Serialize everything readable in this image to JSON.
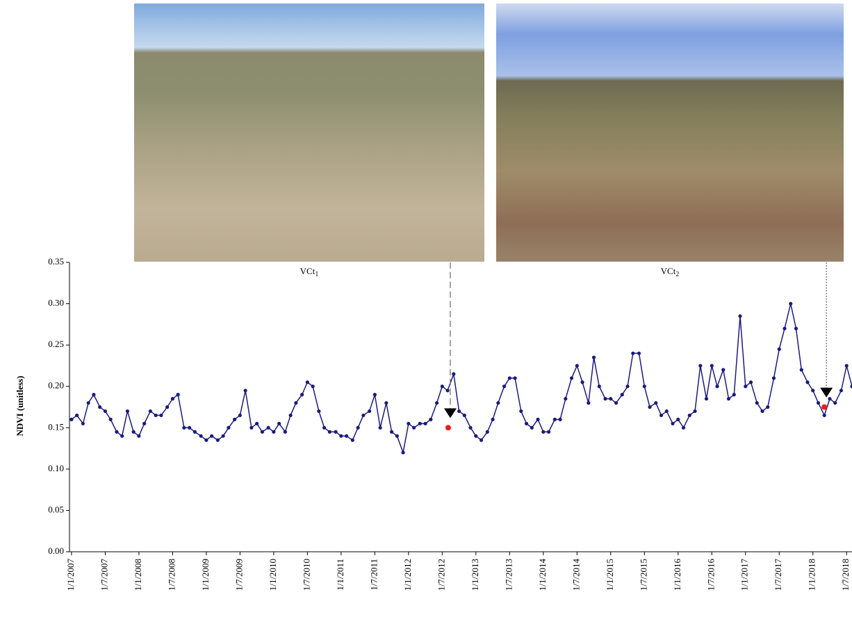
{
  "chart_data": {
    "type": "line",
    "y_label": "NDVI (unitless)",
    "xlim": [
      2006.97,
      2018.58
    ],
    "xticks": [
      {
        "value": 2007.0,
        "label": "1/1/2007"
      },
      {
        "value": 2007.5,
        "label": "1/7/2007"
      },
      {
        "value": 2008.0,
        "label": "1/1/2008"
      },
      {
        "value": 2008.5,
        "label": "1/7/2008"
      },
      {
        "value": 2009.0,
        "label": "1/1/2009"
      },
      {
        "value": 2009.5,
        "label": "1/7/2009"
      },
      {
        "value": 2010.0,
        "label": "1/1/2010"
      },
      {
        "value": 2010.5,
        "label": "1/7/2010"
      },
      {
        "value": 2011.0,
        "label": "1/1/2011"
      },
      {
        "value": 2011.5,
        "label": "1/7/2011"
      },
      {
        "value": 2012.0,
        "label": "1/1/2012"
      },
      {
        "value": 2012.5,
        "label": "1/7/2012"
      },
      {
        "value": 2013.0,
        "label": "1/1/2013"
      },
      {
        "value": 2013.5,
        "label": "1/7/2013"
      },
      {
        "value": 2014.0,
        "label": "1/1/2014"
      },
      {
        "value": 2014.5,
        "label": "1/7/2014"
      },
      {
        "value": 2015.0,
        "label": "1/1/2015"
      },
      {
        "value": 2015.5,
        "label": "1/7/2015"
      },
      {
        "value": 2016.0,
        "label": "1/1/2016"
      },
      {
        "value": 2016.5,
        "label": "1/7/2016"
      },
      {
        "value": 2017.0,
        "label": "1/1/2017"
      },
      {
        "value": 2017.5,
        "label": "1/7/2017"
      },
      {
        "value": 2018.0,
        "label": "1/1/2018"
      },
      {
        "value": 2018.5,
        "label": "1/7/2018"
      }
    ],
    "ylim": [
      0,
      0.35
    ],
    "yticks": [
      {
        "value": 0,
        "label": "0.00"
      },
      {
        "value": 0.05,
        "label": "0.05"
      },
      {
        "value": 0.1,
        "label": "0.10"
      },
      {
        "value": 0.15,
        "label": "0.15"
      },
      {
        "value": 0.2,
        "label": "0.20"
      },
      {
        "value": 0.25,
        "label": "0.25"
      },
      {
        "value": 0.3,
        "label": "0.30"
      },
      {
        "value": 0.35,
        "label": "0.35"
      }
    ],
    "series": [
      {
        "color": "#1a1a80",
        "x": [
          2007.0,
          2007.08,
          2007.17,
          2007.25,
          2007.33,
          2007.42,
          2007.5,
          2007.58,
          2007.67,
          2007.75,
          2007.83,
          2007.92,
          2008.0,
          2008.08,
          2008.17,
          2008.25,
          2008.33,
          2008.42,
          2008.5,
          2008.58,
          2008.67,
          2008.75,
          2008.83,
          2008.92,
          2009.0,
          2009.08,
          2009.17,
          2009.25,
          2009.33,
          2009.42,
          2009.5,
          2009.58,
          2009.67,
          2009.75,
          2009.83,
          2009.92,
          2010.0,
          2010.08,
          2010.17,
          2010.25,
          2010.33,
          2010.42,
          2010.5,
          2010.58,
          2010.67,
          2010.75,
          2010.83,
          2010.92,
          2011.0,
          2011.08,
          2011.17,
          2011.25,
          2011.33,
          2011.42,
          2011.5,
          2011.58,
          2011.67,
          2011.75,
          2011.83,
          2011.92,
          2012.0,
          2012.08,
          2012.17,
          2012.25,
          2012.33,
          2012.42,
          2012.5,
          2012.58,
          2012.67,
          2012.75,
          2012.83,
          2012.92,
          2013.0,
          2013.08,
          2013.17,
          2013.25,
          2013.33,
          2013.42,
          2013.5,
          2013.58,
          2013.67,
          2013.75,
          2013.83,
          2013.92,
          2014.0,
          2014.08,
          2014.17,
          2014.25,
          2014.33,
          2014.42,
          2014.5,
          2014.58,
          2014.67,
          2014.75,
          2014.83,
          2014.92,
          2015.0,
          2015.08,
          2015.17,
          2015.25,
          2015.33,
          2015.42,
          2015.5,
          2015.58,
          2015.67,
          2015.75,
          2015.83,
          2015.92,
          2016.0,
          2016.08,
          2016.17,
          2016.25,
          2016.33,
          2016.42,
          2016.5,
          2016.58,
          2016.67,
          2016.75,
          2016.83,
          2016.92,
          2017.0,
          2017.08,
          2017.17,
          2017.25,
          2017.33,
          2017.42,
          2017.5,
          2017.58,
          2017.67,
          2017.75,
          2017.83,
          2017.92,
          2018.0,
          2018.08,
          2018.17,
          2018.25,
          2018.33,
          2018.42,
          2018.5,
          2018.58
        ],
        "values": [
          0.16,
          0.165,
          0.155,
          0.18,
          0.19,
          0.175,
          0.17,
          0.16,
          0.145,
          0.14,
          0.17,
          0.145,
          0.14,
          0.155,
          0.17,
          0.165,
          0.165,
          0.175,
          0.185,
          0.19,
          0.15,
          0.15,
          0.145,
          0.14,
          0.135,
          0.14,
          0.135,
          0.14,
          0.15,
          0.16,
          0.165,
          0.195,
          0.15,
          0.155,
          0.145,
          0.15,
          0.145,
          0.155,
          0.145,
          0.165,
          0.18,
          0.19,
          0.205,
          0.2,
          0.17,
          0.15,
          0.145,
          0.145,
          0.14,
          0.14,
          0.135,
          0.15,
          0.165,
          0.17,
          0.19,
          0.15,
          0.18,
          0.145,
          0.14,
          0.12,
          0.155,
          0.15,
          0.155,
          0.155,
          0.16,
          0.18,
          0.2,
          0.195,
          0.215,
          0.17,
          0.165,
          0.15,
          0.14,
          0.135,
          0.145,
          0.16,
          0.18,
          0.2,
          0.21,
          0.21,
          0.17,
          0.155,
          0.15,
          0.16,
          0.145,
          0.145,
          0.16,
          0.16,
          0.185,
          0.21,
          0.225,
          0.205,
          0.18,
          0.235,
          0.2,
          0.185,
          0.185,
          0.18,
          0.19,
          0.2,
          0.24,
          0.24,
          0.2,
          0.175,
          0.18,
          0.165,
          0.17,
          0.155,
          0.16,
          0.15,
          0.165,
          0.17,
          0.225,
          0.185,
          0.225,
          0.2,
          0.22,
          0.185,
          0.19,
          0.285,
          0.2,
          0.205,
          0.18,
          0.17,
          0.175,
          0.21,
          0.245,
          0.27,
          0.3,
          0.27,
          0.22,
          0.205,
          0.195,
          0.18,
          0.165,
          0.185,
          0.18,
          0.195,
          0.225,
          0.2
        ]
      }
    ],
    "annotations": [
      {
        "label": "VCt",
        "subscript": "1",
        "x": 2012.62,
        "y": 0.165,
        "point": 0.15
      },
      {
        "label": "VCt",
        "subscript": "2",
        "x": 2018.2,
        "y": 0.19,
        "point": 0.175
      }
    ]
  }
}
